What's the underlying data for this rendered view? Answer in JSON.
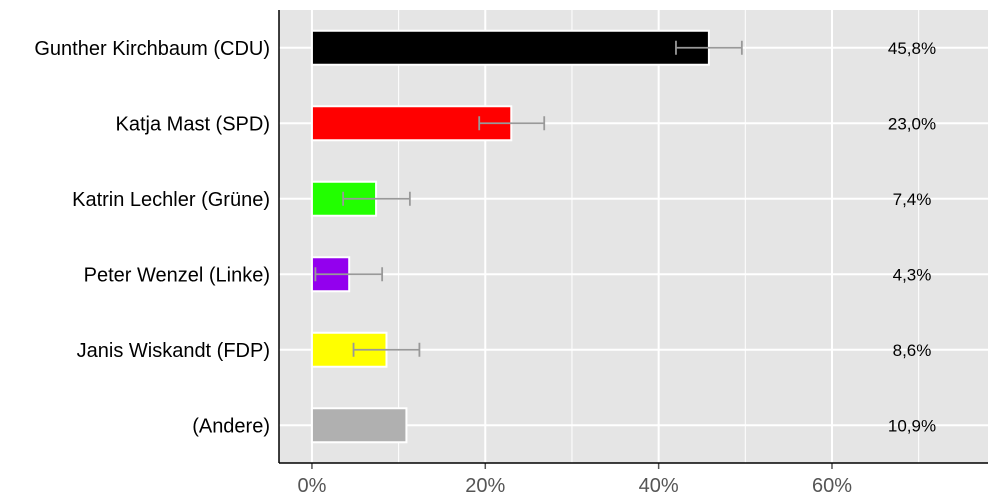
{
  "chart_data": {
    "type": "bar",
    "orientation": "horizontal",
    "categories": [
      "Gunther Kirchbaum (CDU)",
      "Katja Mast (SPD)",
      "Katrin Lechler (Grüne)",
      "Peter Wenzel (Linke)",
      "Janis Wiskandt (FDP)",
      "(Andere)"
    ],
    "values": [
      45.8,
      23.0,
      7.4,
      4.3,
      8.6,
      10.9
    ],
    "value_labels": [
      "45,8%",
      "23,0%",
      "7,4%",
      "4,3%",
      "8,6%",
      "10,9%"
    ],
    "error_low": [
      42.0,
      19.3,
      3.6,
      0.4,
      4.8,
      null
    ],
    "error_high": [
      49.6,
      26.8,
      11.3,
      8.1,
      12.4,
      null
    ],
    "colors": [
      "#000000",
      "#ff0000",
      "#22ff00",
      "#9300ee",
      "#ffff00",
      "#b0b0b0"
    ],
    "xlim": [
      -3.8,
      78
    ],
    "xticks": [
      0,
      20,
      40,
      60
    ],
    "xtick_labels": [
      "0%",
      "20%",
      "40%",
      "60%"
    ],
    "grid": true,
    "background": "#e5e5e5",
    "error_bar_color": "#999999"
  }
}
